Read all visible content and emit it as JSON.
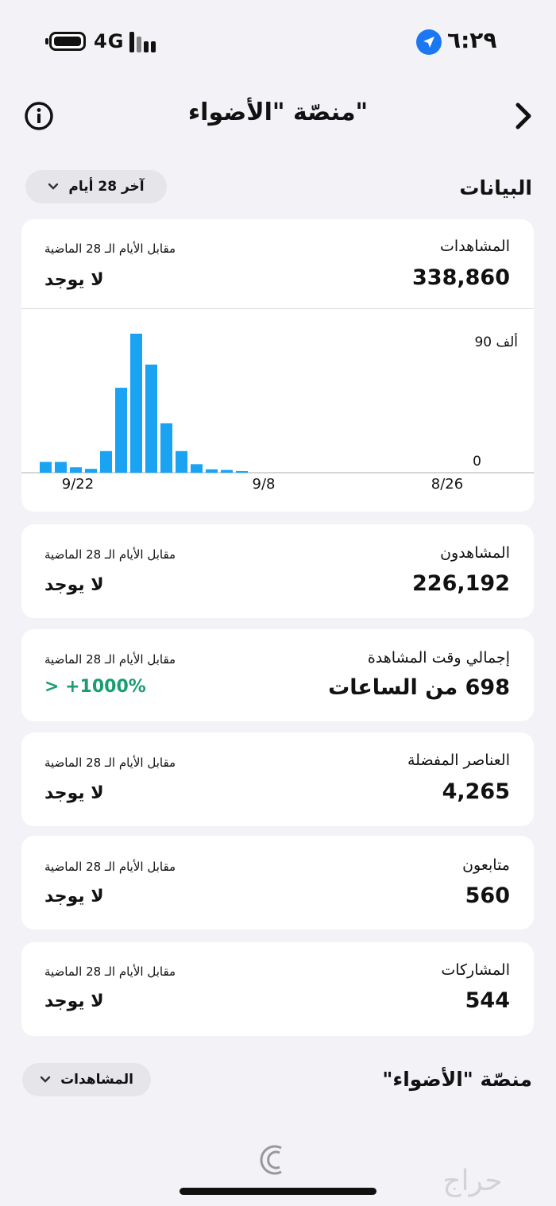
{
  "status_bar": {
    "network": "4G",
    "time": "٦:٢٩"
  },
  "header": {
    "title": "منصّة \"الأضواء\""
  },
  "data_section": {
    "title": "البيانات",
    "range_label": "آخر 28 أيام"
  },
  "views_card": {
    "label": "المشاهدات",
    "value": "338,860",
    "compare_label": "مقابل الأيام الـ 28 الماضية",
    "compare_value": "لا يوجد"
  },
  "chart_data": {
    "type": "bar",
    "y_tick_top": "90 ألف",
    "y_tick_zero": "0",
    "x_tick_labels": [
      "9/22",
      "9/8",
      "8/26"
    ],
    "ylim": [
      0,
      90000
    ],
    "values": [
      0,
      0,
      0,
      0,
      0,
      0,
      0,
      0,
      0,
      0,
      0,
      0,
      0,
      1000,
      1800,
      2200,
      5500,
      14000,
      32000,
      70000,
      90000,
      55000,
      14000,
      2500,
      3500,
      7000,
      7000,
      0
    ],
    "bar_color": "#1aa3f2"
  },
  "viewers_card": {
    "label": "المشاهدون",
    "value": "226,192",
    "compare_label": "مقابل الأيام الـ 28 الماضية",
    "compare_value": "لا يوجد"
  },
  "watch_time_card": {
    "label": "إجمالي وقت المشاهدة",
    "value": "698 من الساعات",
    "compare_label": "مقابل الأيام الـ 28 الماضية",
    "compare_value": "> +1000%",
    "compare_color": "#1a9e6f"
  },
  "favorites_card": {
    "label": "العناصر المفضلة",
    "value": "4,265",
    "compare_label": "مقابل الأيام الـ 28 الماضية",
    "compare_value": "لا يوجد"
  },
  "followers_card": {
    "label": "متابعون",
    "value": "560",
    "compare_label": "مقابل الأيام الـ 28 الماضية",
    "compare_value": "لا يوجد"
  },
  "shares_card": {
    "label": "المشاركات",
    "value": "544",
    "compare_label": "مقابل الأيام الـ 28 الماضية",
    "compare_value": "لا يوجد"
  },
  "platform_section": {
    "title": "منصّة \"الأضواء\"",
    "dropdown_label": "المشاهدات"
  },
  "watermark": {
    "text": "حراج"
  }
}
